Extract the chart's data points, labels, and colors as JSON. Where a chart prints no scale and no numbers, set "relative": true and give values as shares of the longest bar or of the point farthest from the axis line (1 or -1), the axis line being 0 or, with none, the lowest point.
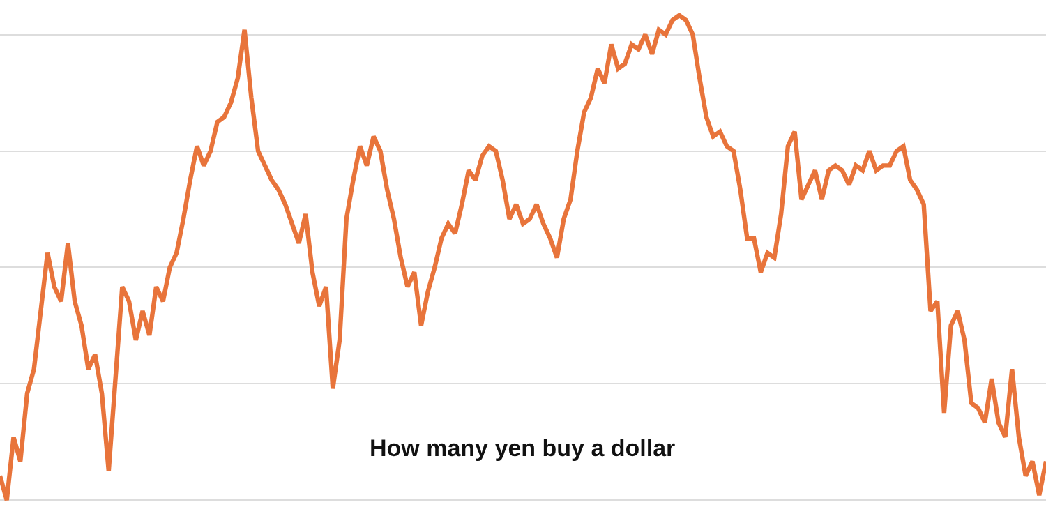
{
  "chart_data": {
    "type": "line",
    "relative": true,
    "grid": "y",
    "marker": "none",
    "line_style": "solid",
    "annotations": [
      "How many yen buy a dollar"
    ],
    "series": [
      {
        "color": "#e8743b",
        "values": [
          0.05,
          0,
          0.13,
          0.08,
          0.22,
          0.27,
          0.39,
          0.51,
          0.44,
          0.41,
          0.53,
          0.41,
          0.36,
          0.27,
          0.3,
          0.22,
          0.06,
          0.25,
          0.44,
          0.41,
          0.33,
          0.39,
          0.34,
          0.44,
          0.41,
          0.48,
          0.51,
          0.58,
          0.66,
          0.73,
          0.69,
          0.72,
          0.78,
          0.79,
          0.82,
          0.87,
          0.97,
          0.83,
          0.72,
          0.69,
          0.66,
          0.64,
          0.61,
          0.57,
          0.53,
          0.59,
          0.47,
          0.4,
          0.44,
          0.23,
          0.33,
          0.58,
          0.66,
          0.73,
          0.69,
          0.75,
          0.72,
          0.64,
          0.58,
          0.5,
          0.44,
          0.47,
          0.36,
          0.43,
          0.48,
          0.54,
          0.57,
          0.55,
          0.61,
          0.68,
          0.66,
          0.71,
          0.73,
          0.72,
          0.66,
          0.58,
          0.61,
          0.57,
          0.58,
          0.61,
          0.57,
          0.54,
          0.5,
          0.58,
          0.62,
          0.72,
          0.8,
          0.83,
          0.89,
          0.86,
          0.94,
          0.89,
          0.9,
          0.94,
          0.93,
          0.96,
          0.92,
          0.97,
          0.96,
          0.99,
          1,
          0.99,
          0.96,
          0.87,
          0.79,
          0.75,
          0.76,
          0.73,
          0.72,
          0.64,
          0.54,
          0.54,
          0.47,
          0.51,
          0.5,
          0.59,
          0.73,
          0.76,
          0.62,
          0.65,
          0.68,
          0.62,
          0.68,
          0.69,
          0.68,
          0.65,
          0.69,
          0.68,
          0.72,
          0.68,
          0.69,
          0.69,
          0.72,
          0.73,
          0.66,
          0.64,
          0.61,
          0.39,
          0.41,
          0.18,
          0.36,
          0.39,
          0.33,
          0.2,
          0.19,
          0.16,
          0.25,
          0.16,
          0.13,
          0.27,
          0.13,
          0.05,
          0.08,
          0.01,
          0.08
        ]
      }
    ]
  }
}
